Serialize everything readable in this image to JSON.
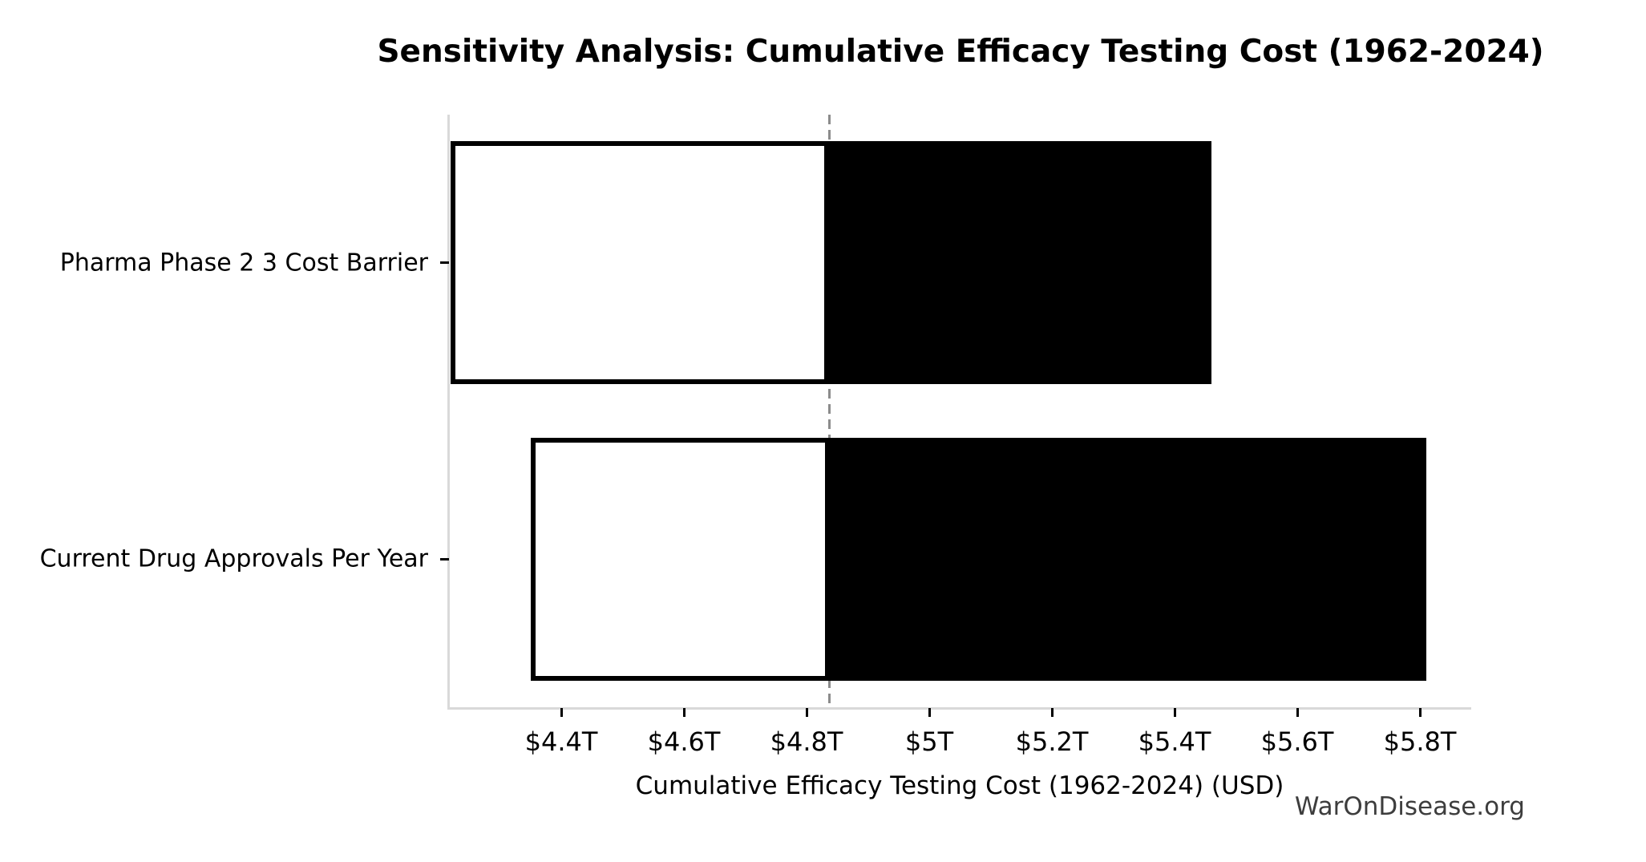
{
  "branding": {
    "watermark": "WarOnDisease.org"
  },
  "chart_data": {
    "type": "bar",
    "subtype": "tornado-sensitivity",
    "orientation": "horizontal",
    "title": "Sensitivity Analysis: Cumulative Efficacy Testing Cost (1962-2024)",
    "xlabel": "Cumulative Efficacy Testing Cost (1962-2024) (USD)",
    "ylabel": "",
    "unit": "trillion USD",
    "baseline": 4.837,
    "xlim": [
      4.217,
      5.883
    ],
    "grid": false,
    "legend": false,
    "categories": [
      "Pharma Phase 2 3 Cost Barrier",
      "Current Drug Approvals Per Year"
    ],
    "series": [
      {
        "name": "Pharma Phase 2 3 Cost Barrier",
        "low": 4.22,
        "high": 5.46
      },
      {
        "name": "Current Drug Approvals Per Year",
        "low": 4.35,
        "high": 5.81
      }
    ],
    "xticks": [
      {
        "value": 4.4,
        "label": "$4.4T"
      },
      {
        "value": 4.6,
        "label": "$4.6T"
      },
      {
        "value": 4.8,
        "label": "$4.8T"
      },
      {
        "value": 5.0,
        "label": "$5T"
      },
      {
        "value": 5.2,
        "label": "$5.2T"
      },
      {
        "value": 5.4,
        "label": "$5.4T"
      },
      {
        "value": 5.6,
        "label": "$5.6T"
      },
      {
        "value": 5.8,
        "label": "$5.8T"
      }
    ],
    "colors": {
      "low_segment_fill": "#ffffff",
      "high_segment_fill": "#000000",
      "bar_edge": "#000000",
      "baseline_line": "#8c8c8c",
      "spine": "#d9d9d9",
      "watermark_text": "#3d3d3d"
    }
  }
}
